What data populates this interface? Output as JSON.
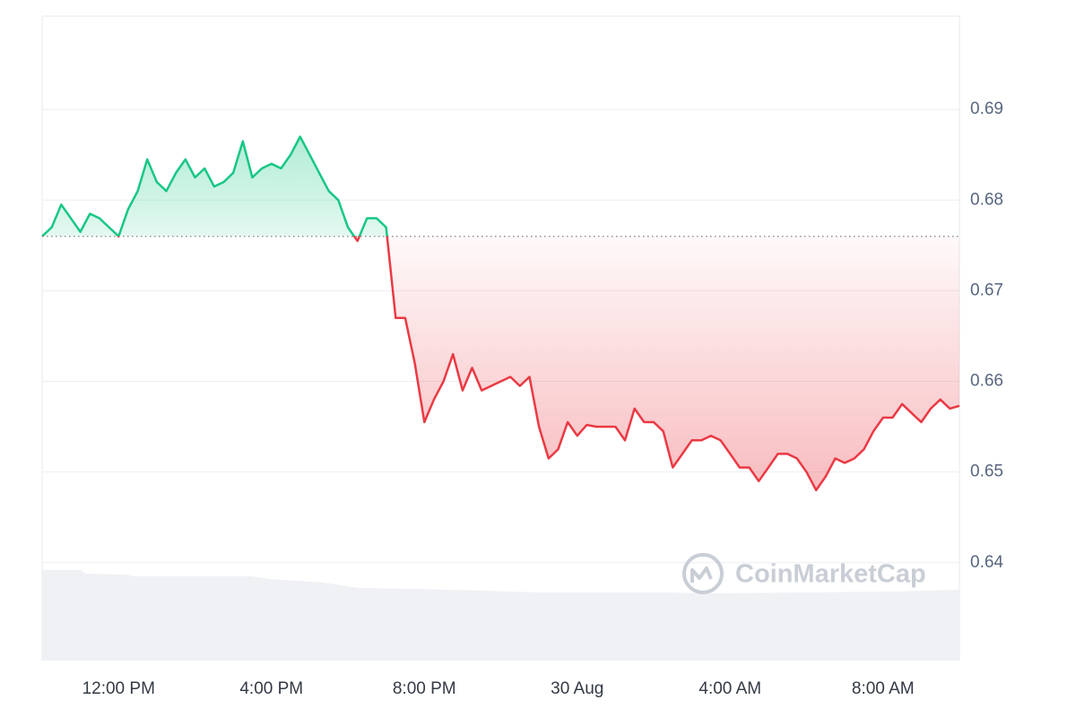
{
  "chart_data": {
    "type": "line",
    "watermark": "CoinMarketCap",
    "categories": [
      null,
      null,
      null,
      null,
      null,
      null,
      null,
      null,
      "12:00 PM",
      null,
      null,
      null,
      null,
      null,
      null,
      null,
      null,
      null,
      null,
      null,
      null,
      null,
      null,
      null,
      "4:00 PM",
      null,
      null,
      null,
      null,
      null,
      null,
      null,
      null,
      null,
      null,
      null,
      null,
      null,
      null,
      null,
      "8:00 PM",
      null,
      null,
      null,
      null,
      null,
      null,
      null,
      null,
      null,
      null,
      null,
      null,
      null,
      null,
      null,
      "30 Aug",
      null,
      null,
      null,
      null,
      null,
      null,
      null,
      null,
      null,
      null,
      null,
      null,
      null,
      null,
      null,
      "4:00 AM",
      null,
      null,
      null,
      null,
      null,
      null,
      null,
      null,
      null,
      null,
      null,
      null,
      null,
      null,
      null,
      "8:00 AM",
      null,
      null,
      null,
      null,
      null,
      null,
      null,
      null
    ],
    "series": [
      {
        "values": [
          0.676,
          0.677,
          0.6795,
          0.678,
          0.6765,
          0.6785,
          0.678,
          0.677,
          0.676,
          0.679,
          0.681,
          0.6845,
          0.682,
          0.681,
          0.683,
          0.6845,
          0.6825,
          0.6835,
          0.6815,
          0.682,
          0.683,
          0.6865,
          0.6825,
          0.6835,
          0.684,
          0.6835,
          0.685,
          0.687,
          0.685,
          0.683,
          0.681,
          0.68,
          0.677,
          0.6755,
          0.678,
          0.678,
          0.677,
          0.667,
          0.667,
          0.662,
          0.6555,
          0.658,
          0.66,
          0.663,
          0.659,
          0.6615,
          0.659,
          0.6595,
          0.66,
          0.6605,
          0.6595,
          0.6605,
          0.655,
          0.6515,
          0.6525,
          0.6555,
          0.654,
          0.6552,
          0.655,
          0.655,
          0.655,
          0.6535,
          0.657,
          0.6555,
          0.6555,
          0.6545,
          0.6505,
          0.652,
          0.6535,
          0.6535,
          0.654,
          0.6535,
          0.652,
          0.6505,
          0.6505,
          0.649,
          0.6505,
          0.652,
          0.652,
          0.6515,
          0.65,
          0.648,
          0.6495,
          0.6515,
          0.651,
          0.6515,
          0.6525,
          0.6545,
          0.656,
          0.656,
          0.6575,
          0.6565,
          0.6555,
          0.657,
          0.658,
          0.657,
          0.6573
        ]
      }
    ],
    "reference": 0.676,
    "up_color": "#16c784",
    "down_color": "#ea3943",
    "ylim": [
      0.6292,
      0.7003
    ],
    "yticks": [
      0.64,
      0.65,
      0.66,
      0.67,
      0.68,
      0.69
    ],
    "grid": true
  }
}
